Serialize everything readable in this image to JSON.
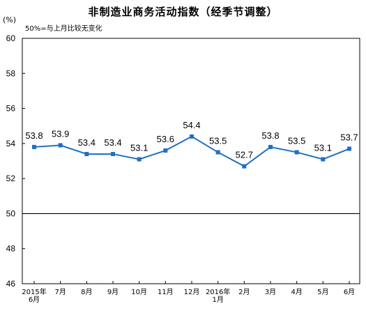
{
  "chart_data": {
    "type": "line",
    "title": "非制造业商务活动指数（经季节调整）",
    "unit_label": "(%)",
    "note": "50%=与上月比较无变化",
    "xlabel": "",
    "ylabel": "",
    "ylim": [
      46,
      60
    ],
    "yticks": [
      "60",
      "58",
      "56",
      "54",
      "52",
      "50",
      "48",
      "46"
    ],
    "ytick_values": [
      60,
      58,
      56,
      54,
      52,
      50,
      48,
      46
    ],
    "reference_line": 50,
    "categories": [
      [
        "2015年",
        "6月"
      ],
      [
        "7月"
      ],
      [
        "8月"
      ],
      [
        "9月"
      ],
      [
        "10月"
      ],
      [
        "11月"
      ],
      [
        "12月"
      ],
      [
        "2016年",
        "1月"
      ],
      [
        "2月"
      ],
      [
        "3月"
      ],
      [
        "4月"
      ],
      [
        "5月"
      ],
      [
        "6月"
      ]
    ],
    "series": [
      {
        "values": [
          53.8,
          53.9,
          53.4,
          53.4,
          53.1,
          53.6,
          54.4,
          53.5,
          52.7,
          53.8,
          53.5,
          53.1,
          53.7
        ],
        "labels": [
          "53.8",
          "53.9",
          "53.4",
          "53.4",
          "53.1",
          "53.6",
          "54.4",
          "53.5",
          "52.7",
          "53.8",
          "53.5",
          "53.1",
          "53.7"
        ]
      }
    ],
    "grid": false,
    "legend": "none",
    "colors": {
      "line": "#1f6fc5",
      "frame": "#000000",
      "reference": "#000000"
    }
  }
}
